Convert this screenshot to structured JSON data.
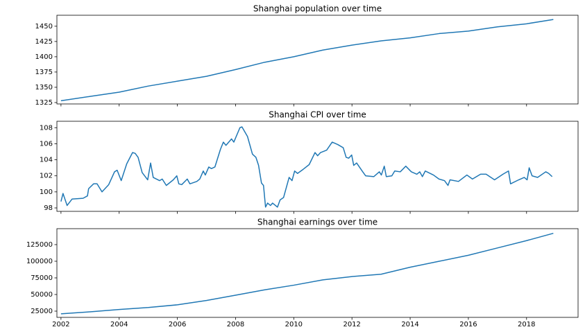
{
  "chart_data": [
    {
      "type": "line",
      "title": "Shanghai population over time",
      "color": "#1f77b4",
      "x": [
        2002,
        2003,
        2004,
        2005,
        2006,
        2007,
        2008,
        2009,
        2010,
        2011,
        2012,
        2013,
        2014,
        2015,
        2016,
        2017,
        2018,
        2018.92
      ],
      "values": [
        1328,
        1335,
        1342,
        1352,
        1360,
        1368,
        1379,
        1391,
        1400,
        1411,
        1419,
        1426,
        1431,
        1438,
        1442,
        1449,
        1454,
        1461
      ],
      "xlim": [
        2001.86,
        2019.77
      ],
      "xticks": [
        2002,
        2004,
        2006,
        2008,
        2010,
        2012,
        2014,
        2016,
        2018
      ],
      "ylim": [
        1322.7,
        1468
      ],
      "yticks": [
        1325,
        1350,
        1375,
        1400,
        1425,
        1450
      ]
    },
    {
      "type": "line",
      "title": "Shanghai CPI over time",
      "color": "#1f77b4",
      "x": [
        2002.0,
        2002.07,
        2002.21,
        2002.38,
        2002.76,
        2002.91,
        2002.95,
        2003.12,
        2003.24,
        2003.41,
        2003.64,
        2003.84,
        2003.93,
        2004.07,
        2004.26,
        2004.46,
        2004.55,
        2004.65,
        2004.79,
        2004.98,
        2005.08,
        2005.17,
        2005.39,
        2005.48,
        2005.62,
        2005.86,
        2005.98,
        2006.05,
        2006.15,
        2006.34,
        2006.43,
        2006.67,
        2006.77,
        2006.89,
        2006.96,
        2007.08,
        2007.17,
        2007.29,
        2007.48,
        2007.58,
        2007.67,
        2007.86,
        2007.94,
        2008.15,
        2008.22,
        2008.41,
        2008.58,
        2008.7,
        2008.79,
        2008.89,
        2008.96,
        2009.03,
        2009.1,
        2009.2,
        2009.27,
        2009.44,
        2009.53,
        2009.65,
        2009.84,
        2009.94,
        2010.03,
        2010.13,
        2010.32,
        2010.53,
        2010.73,
        2010.82,
        2010.92,
        2011.13,
        2011.32,
        2011.51,
        2011.7,
        2011.8,
        2011.89,
        2011.99,
        2012.06,
        2012.16,
        2012.37,
        2012.47,
        2012.75,
        2012.94,
        2013.01,
        2013.11,
        2013.18,
        2013.37,
        2013.47,
        2013.66,
        2013.85,
        2014.04,
        2014.23,
        2014.33,
        2014.42,
        2014.52,
        2014.8,
        2014.99,
        2015.18,
        2015.3,
        2015.37,
        2015.66,
        2015.95,
        2016.14,
        2016.42,
        2016.61,
        2016.9,
        2017.19,
        2017.38,
        2017.45,
        2017.73,
        2017.92,
        2018.02,
        2018.09,
        2018.19,
        2018.38,
        2018.66,
        2018.76,
        2018.88
      ],
      "values": [
        98.8,
        99.8,
        98.3,
        99.1,
        99.2,
        99.5,
        100.4,
        101.0,
        101.0,
        100.0,
        100.9,
        102.5,
        102.7,
        101.4,
        103.5,
        104.9,
        104.8,
        104.3,
        102.4,
        101.5,
        103.6,
        101.8,
        101.4,
        101.6,
        100.8,
        101.5,
        102.0,
        101.0,
        100.9,
        101.6,
        101.0,
        101.3,
        101.6,
        102.6,
        102.1,
        103.1,
        102.9,
        103.1,
        105.3,
        106.2,
        105.8,
        106.6,
        106.2,
        108.0,
        108.1,
        106.9,
        104.7,
        104.3,
        103.3,
        101.1,
        100.8,
        98.1,
        98.6,
        98.3,
        98.6,
        98.1,
        99.0,
        99.3,
        101.8,
        101.4,
        102.6,
        102.3,
        102.8,
        103.4,
        104.9,
        104.5,
        104.9,
        105.2,
        106.2,
        105.9,
        105.5,
        104.3,
        104.2,
        104.6,
        103.3,
        103.6,
        102.5,
        102.0,
        101.9,
        102.5,
        102.1,
        103.2,
        101.9,
        102.0,
        102.6,
        102.5,
        103.2,
        102.5,
        102.2,
        102.5,
        101.9,
        102.6,
        102.1,
        101.6,
        101.4,
        100.8,
        101.5,
        101.3,
        102.1,
        101.6,
        102.2,
        102.2,
        101.5,
        102.2,
        102.6,
        101.0,
        101.5,
        101.8,
        101.5,
        103.0,
        102.0,
        101.8,
        102.5,
        102.3,
        101.9
      ],
      "xlim": [
        2001.86,
        2019.77
      ],
      "xticks": [
        2002,
        2004,
        2006,
        2008,
        2010,
        2012,
        2014,
        2016,
        2018
      ],
      "ylim": [
        97.57,
        108.8
      ],
      "yticks": [
        98,
        100,
        102,
        104,
        106,
        108
      ]
    },
    {
      "type": "line",
      "title": "Shanghai earnings over time",
      "color": "#1f77b4",
      "x": [
        2002,
        2003,
        2004,
        2005,
        2006,
        2007,
        2008,
        2009,
        2010,
        2011,
        2012,
        2013,
        2014,
        2015,
        2016,
        2017,
        2018,
        2018.92
      ],
      "values": [
        21000,
        24000,
        27500,
        30500,
        34500,
        41000,
        49000,
        57000,
        64000,
        72000,
        77000,
        80500,
        91000,
        100000,
        109000,
        120000,
        131000,
        142000
      ],
      "xlim": [
        2001.86,
        2019.77
      ],
      "xticks": [
        2002,
        2004,
        2006,
        2008,
        2010,
        2012,
        2014,
        2016,
        2018
      ],
      "ylim": [
        15625,
        148958
      ],
      "yticks": [
        25000,
        50000,
        75000,
        100000,
        125000
      ]
    }
  ]
}
